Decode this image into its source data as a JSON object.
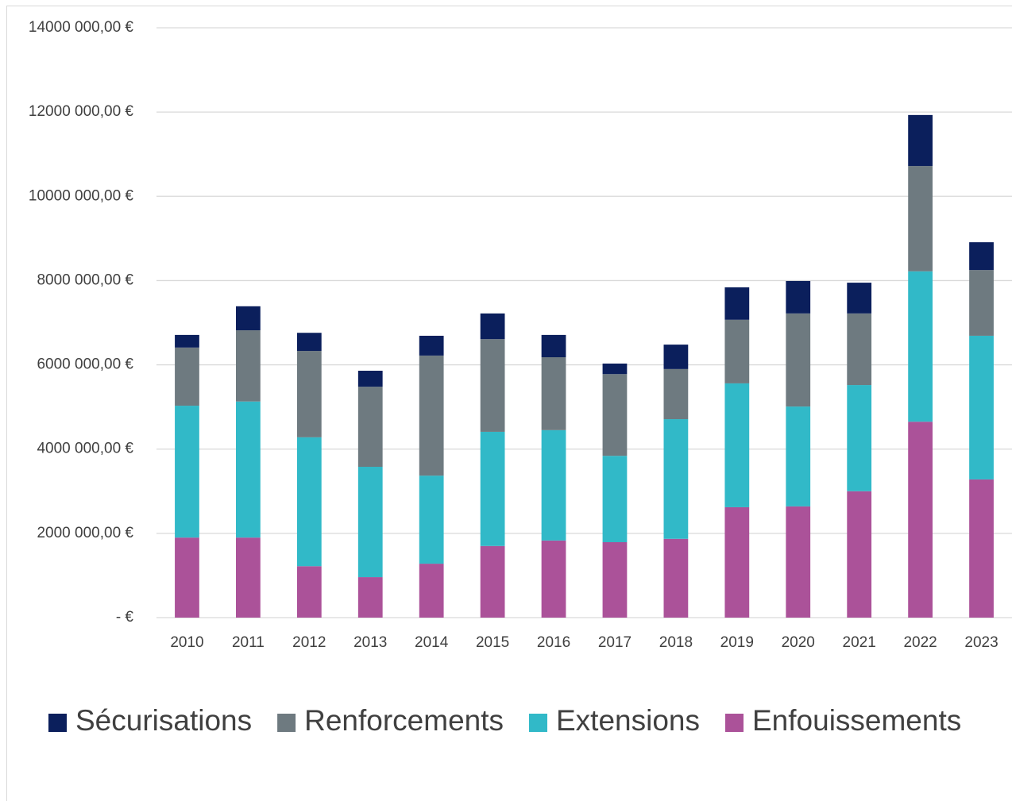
{
  "chart_data": {
    "type": "stacked_bar",
    "categories": [
      "2010",
      "2011",
      "2012",
      "2013",
      "2014",
      "2015",
      "2016",
      "2017",
      "2018",
      "2019",
      "2020",
      "2021",
      "2022",
      "2023"
    ],
    "series": [
      {
        "name": "Sécurisations",
        "color": "#0b1f5c",
        "values": [
          300000,
          570000,
          430000,
          380000,
          470000,
          610000,
          530000,
          250000,
          580000,
          770000,
          770000,
          730000,
          1210000,
          660000
        ]
      },
      {
        "name": "Renforcements",
        "color": "#6e7a80",
        "values": [
          1380000,
          1690000,
          2050000,
          1900000,
          2850000,
          2200000,
          1730000,
          1940000,
          1190000,
          1510000,
          2210000,
          1700000,
          2500000,
          1560000
        ]
      },
      {
        "name": "Extensions",
        "color": "#31b9c8",
        "values": [
          3130000,
          3230000,
          3060000,
          2620000,
          2090000,
          2710000,
          2620000,
          2050000,
          2840000,
          2940000,
          2370000,
          2520000,
          3570000,
          3410000
        ]
      },
      {
        "name": "Enfouissements",
        "color": "#ab5299",
        "values": [
          1900000,
          1900000,
          1220000,
          960000,
          1280000,
          1700000,
          1830000,
          1790000,
          1870000,
          2620000,
          2640000,
          3000000,
          4650000,
          3280000
        ]
      }
    ],
    "ylim": [
      0,
      14000000
    ],
    "yticks": [
      {
        "value": 0,
        "label": "-  €"
      },
      {
        "value": 2000000,
        "label": "2000 000,00 €"
      },
      {
        "value": 4000000,
        "label": "4000 000,00 €"
      },
      {
        "value": 6000000,
        "label": "6000 000,00 €"
      },
      {
        "value": 8000000,
        "label": "8000 000,00 €"
      },
      {
        "value": 10000000,
        "label": "10000 000,00 €"
      },
      {
        "value": 12000000,
        "label": "12000 000,00 €"
      },
      {
        "value": 14000000,
        "label": "14000 000,00 €"
      }
    ],
    "grid": true,
    "legend": "bottom"
  }
}
